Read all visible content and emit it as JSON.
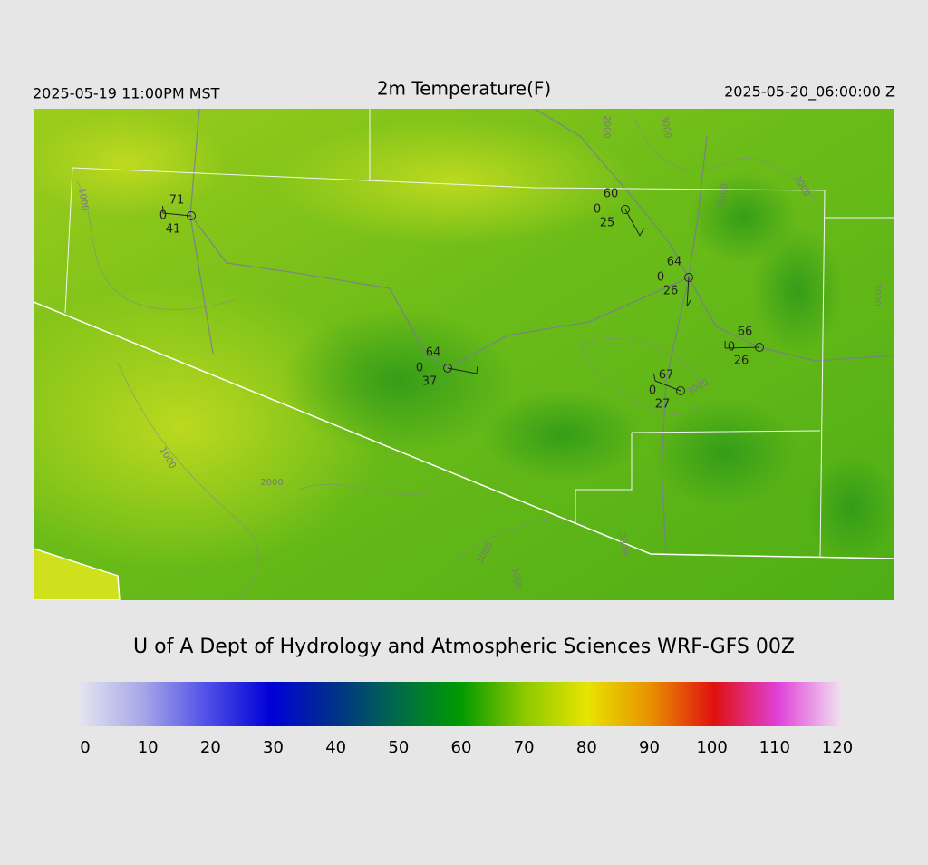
{
  "header": {
    "left": "2025-05-19 11:00PM MST",
    "title": "2m Temperature(F)",
    "right": "2025-05-20_06:00:00 Z"
  },
  "map": {
    "stations": [
      {
        "temperature": 71,
        "code": 0,
        "dewpoint": 41
      },
      {
        "temperature": 60,
        "code": 0,
        "dewpoint": 25
      },
      {
        "temperature": 64,
        "code": 0,
        "dewpoint": 26
      },
      {
        "temperature": 66,
        "code": 0,
        "dewpoint": 26
      },
      {
        "temperature": 64,
        "code": 0,
        "dewpoint": 37
      },
      {
        "temperature": 67,
        "code": 0,
        "dewpoint": 27
      }
    ],
    "contour_labels": [
      "1000",
      "2000",
      "3000",
      "3000",
      "3000",
      "1000",
      "2000",
      "3000",
      "3000",
      "3000",
      "3000",
      "3000"
    ]
  },
  "credit": "U of A Dept of Hydrology and Atmospheric Sciences WRF-GFS 00Z",
  "colorbar": {
    "ticks": [
      0,
      10,
      20,
      30,
      40,
      50,
      60,
      70,
      80,
      90,
      100,
      110,
      120
    ],
    "colors": [
      "#e4e4f0",
      "#a6a6e8",
      "#5050e8",
      "#0000d8",
      "#00308a",
      "#006a4a",
      "#009a00",
      "#8cc800",
      "#e8e400",
      "#e89000",
      "#e01010",
      "#e040d8",
      "#f0e0f0"
    ]
  }
}
